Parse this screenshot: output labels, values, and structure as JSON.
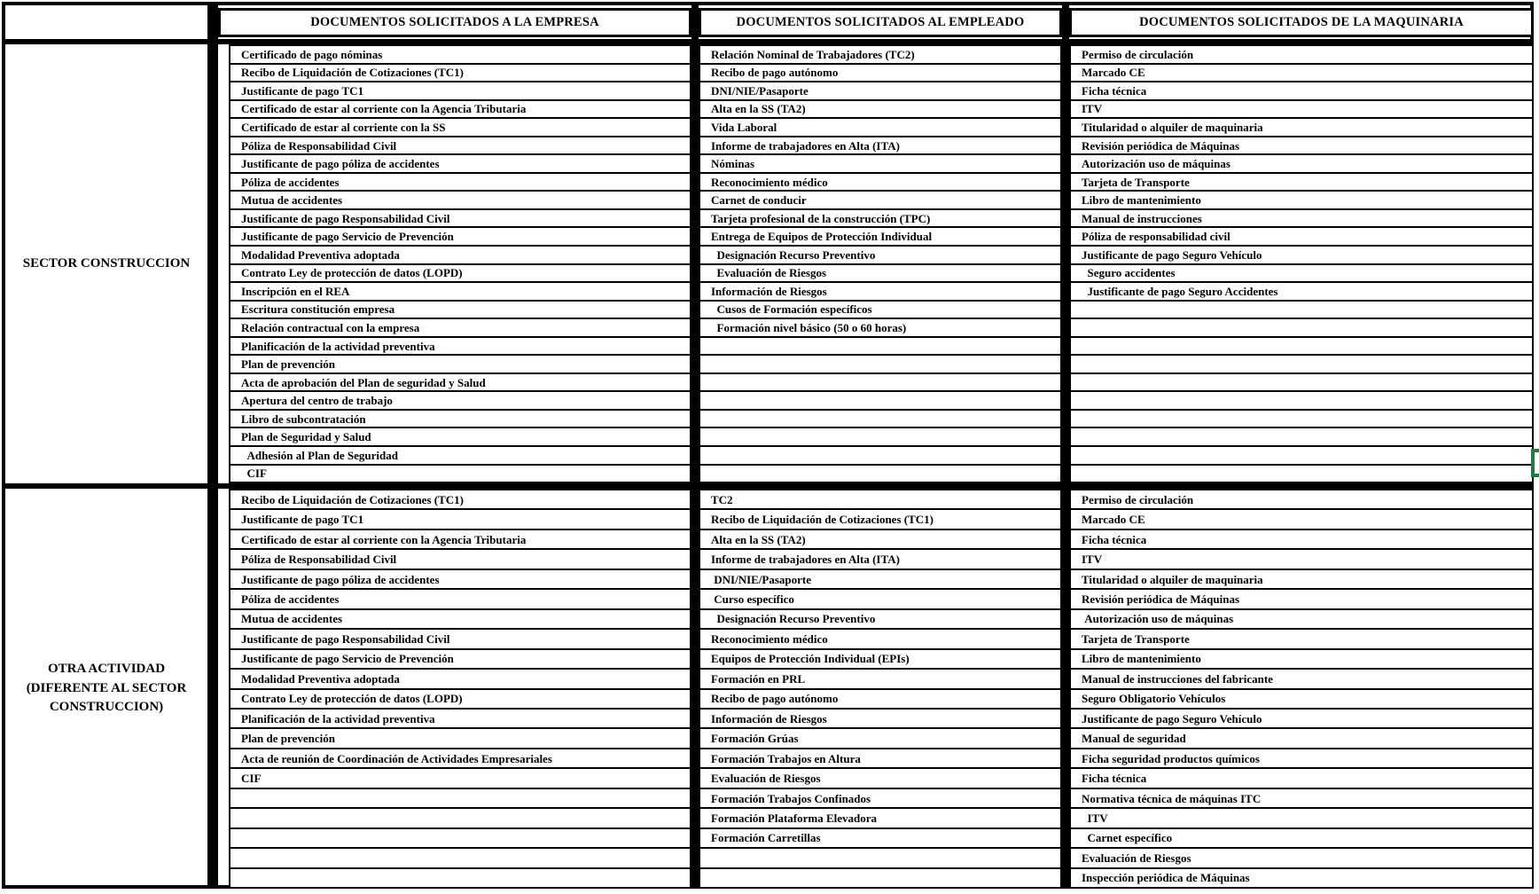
{
  "header": {
    "col_empresa": "DOCUMENTOS SOLICITADOS A LA EMPRESA",
    "col_empleado": "DOCUMENTOS SOLICITADOS AL EMPLEADO",
    "col_maquinaria": "DOCUMENTOS SOLICITADOS DE LA MAQUINARIA"
  },
  "selection_cursor_color": "#1f7a47",
  "sections": [
    {
      "label": "SECTOR CONSTRUCCION",
      "empresa": [
        "Certificado de pago nóminas",
        "Recibo de Liquidación de Cotizaciones (TC1)",
        "Justificante de pago TC1",
        "Certificado de estar al corriente con la Agencia Tributaria",
        "Certificado de estar al corriente con la SS",
        "Póliza de Responsabilidad Civil",
        "Justificante de pago póliza de accidentes",
        "Póliza de accidentes",
        "Mutua de accidentes",
        "Justificante de pago Responsabilidad Civil",
        "Justificante de pago Servicio de Prevención",
        "Modalidad Preventiva adoptada",
        "Contrato Ley de protección de datos (LOPD)",
        "Inscripción en el REA",
        "Escritura constitución empresa",
        "Relación contractual con la empresa",
        "Planificación de la actividad preventiva",
        "Plan de prevención",
        "Acta de aprobación del Plan de seguridad y Salud",
        "Apertura del centro de trabajo",
        "Libro de subcontratación",
        "Plan de Seguridad y Salud",
        "  Adhesión al Plan de Seguridad",
        "  CIF"
      ],
      "empleado": [
        "Relación Nominal de Trabajadores (TC2)",
        "Recibo de pago autónomo",
        "DNI/NIE/Pasaporte",
        "Alta en la SS (TA2)",
        "Vida Laboral",
        "Informe de trabajadores en Alta (ITA)",
        "Nóminas",
        "Reconocimiento médico",
        "Carnet de conducir",
        "Tarjeta profesional de la construcción (TPC)",
        "Entrega de Equipos de Protección Individual",
        "  Designación Recurso Preventivo",
        "  Evaluación de Riesgos",
        "Información de Riesgos",
        "  Cusos de Formación específicos",
        "  Formación nivel básico (50 o 60 horas)",
        "",
        "",
        "",
        "",
        "",
        "",
        "",
        ""
      ],
      "maquinaria": [
        "Permiso de circulación",
        "Marcado CE",
        "Ficha técnica",
        "ITV",
        "Titularidad o alquiler de maquinaria",
        "Revisión periódica de Máquinas",
        "Autorización uso de máquinas",
        "Tarjeta de Transporte",
        "Libro de mantenimiento",
        "Manual de instrucciones",
        "Póliza de responsabilidad civil",
        "Justificante de pago Seguro Vehículo",
        "  Seguro accidentes",
        "  Justificante de pago Seguro Accidentes",
        "",
        "",
        "",
        "",
        "",
        "",
        "",
        "",
        "",
        ""
      ]
    },
    {
      "label": "OTRA ACTIVIDAD (DIFERENTE AL SECTOR CONSTRUCCION)",
      "empresa": [
        "Recibo de Liquidación de Cotizaciones (TC1)",
        "Justificante de pago TC1",
        "Certificado de estar al corriente con la Agencia Tributaria",
        "Póliza de Responsabilidad Civil",
        "Justificante de pago póliza de accidentes",
        "Póliza de accidentes",
        "Mutua de accidentes",
        "Justificante de pago Responsabilidad Civil",
        "Justificante de pago Servicio de Prevención",
        "Modalidad Preventiva adoptada",
        "Contrato Ley de protección de datos (LOPD)",
        "Planificación de la actividad preventiva",
        "Plan de prevención",
        "Acta de reunión de Coordinación de Actividades Empresariales",
        "CIF",
        "",
        "",
        "",
        "",
        ""
      ],
      "empleado": [
        "TC2",
        "Recibo de Liquidación de Cotizaciones (TC1)",
        "Alta en la SS (TA2)",
        "Informe de trabajadores en Alta (ITA)",
        " DNI/NIE/Pasaporte",
        " Curso específico",
        "  Designación Recurso Preventivo",
        "Reconocimiento médico",
        "Equipos de Protección Individual (EPIs)",
        "Formación en PRL",
        "Recibo de pago autónomo",
        "Información de Riesgos",
        "Formación Grúas",
        "Formación Trabajos en Altura",
        "Evaluación de Riesgos",
        "Formación Trabajos Confinados",
        "Formación Plataforma Elevadora",
        "Formación Carretillas",
        "",
        ""
      ],
      "maquinaria": [
        "Permiso de circulación",
        "Marcado CE",
        "Ficha técnica",
        "ITV",
        "Titularidad o alquiler de maquinaria",
        "Revisión periódica de Máquinas",
        " Autorización uso de máquinas",
        "Tarjeta de Transporte",
        "Libro de mantenimiento",
        "Manual de instrucciones del fabricante",
        "Seguro Obligatorio Vehículos",
        "Justificante de pago Seguro Vehículo",
        "Manual de seguridad",
        "Ficha seguridad productos químicos",
        "Ficha técnica",
        "Normativa técnica de máquinas ITC",
        "  ITV",
        "  Carnet específico",
        "Evaluación de Riesgos",
        "Inspección periódica de Máquinas"
      ]
    }
  ]
}
